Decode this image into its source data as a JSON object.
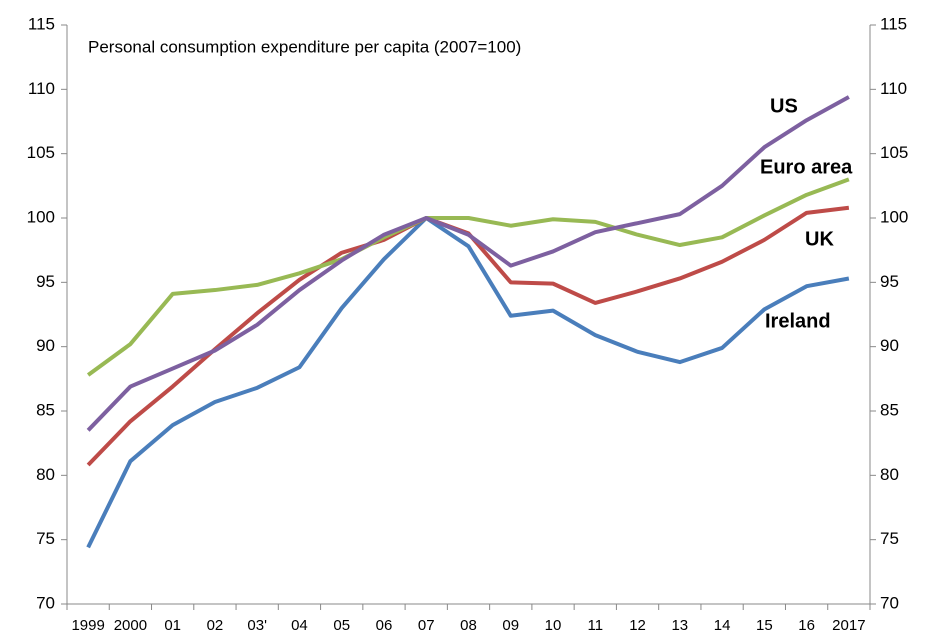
{
  "chart_data": {
    "type": "line",
    "title": "Personal consumption expenditure per capita (2007=100)",
    "categories": [
      "1999",
      "2000",
      "01",
      "02",
      "03'",
      "04",
      "05",
      "06",
      "07",
      "08",
      "09",
      "10",
      "11",
      "12",
      "13",
      "14",
      "15",
      "16",
      "2017"
    ],
    "series": [
      {
        "name": "Ireland",
        "color": "#4a7ebb",
        "values": [
          74.4,
          81.1,
          83.9,
          85.7,
          86.8,
          88.4,
          93.0,
          96.8,
          100,
          97.8,
          92.4,
          92.8,
          90.9,
          89.6,
          88.8,
          89.9,
          92.9,
          94.7,
          95.3
        ]
      },
      {
        "name": "UK",
        "color": "#be4b48",
        "values": [
          80.8,
          84.2,
          86.9,
          89.8,
          92.6,
          95.2,
          97.3,
          98.3,
          100,
          98.8,
          95.0,
          94.9,
          93.4,
          94.3,
          95.3,
          96.6,
          98.3,
          100.4,
          100.8
        ]
      },
      {
        "name": "Euro area",
        "color": "#98b954",
        "values": [
          87.8,
          90.2,
          94.1,
          94.4,
          94.8,
          95.7,
          96.8,
          98.5,
          100,
          100,
          99.4,
          99.9,
          99.7,
          98.7,
          97.9,
          98.5,
          100.2,
          101.8,
          103.0
        ]
      },
      {
        "name": "US",
        "color": "#7d60a0",
        "values": [
          83.5,
          86.9,
          88.3,
          89.7,
          91.7,
          94.4,
          96.7,
          98.7,
          100,
          98.7,
          96.3,
          97.4,
          98.9,
          99.6,
          100.3,
          102.5,
          105.5,
          107.6,
          109.4
        ]
      }
    ],
    "ylim": [
      70,
      115
    ],
    "yticks": [
      70,
      75,
      80,
      85,
      90,
      95,
      100,
      105,
      110,
      115
    ],
    "y2lim": [
      70,
      115
    ],
    "y2ticks": [
      70,
      75,
      80,
      85,
      90,
      95,
      100,
      105,
      110,
      115
    ]
  }
}
